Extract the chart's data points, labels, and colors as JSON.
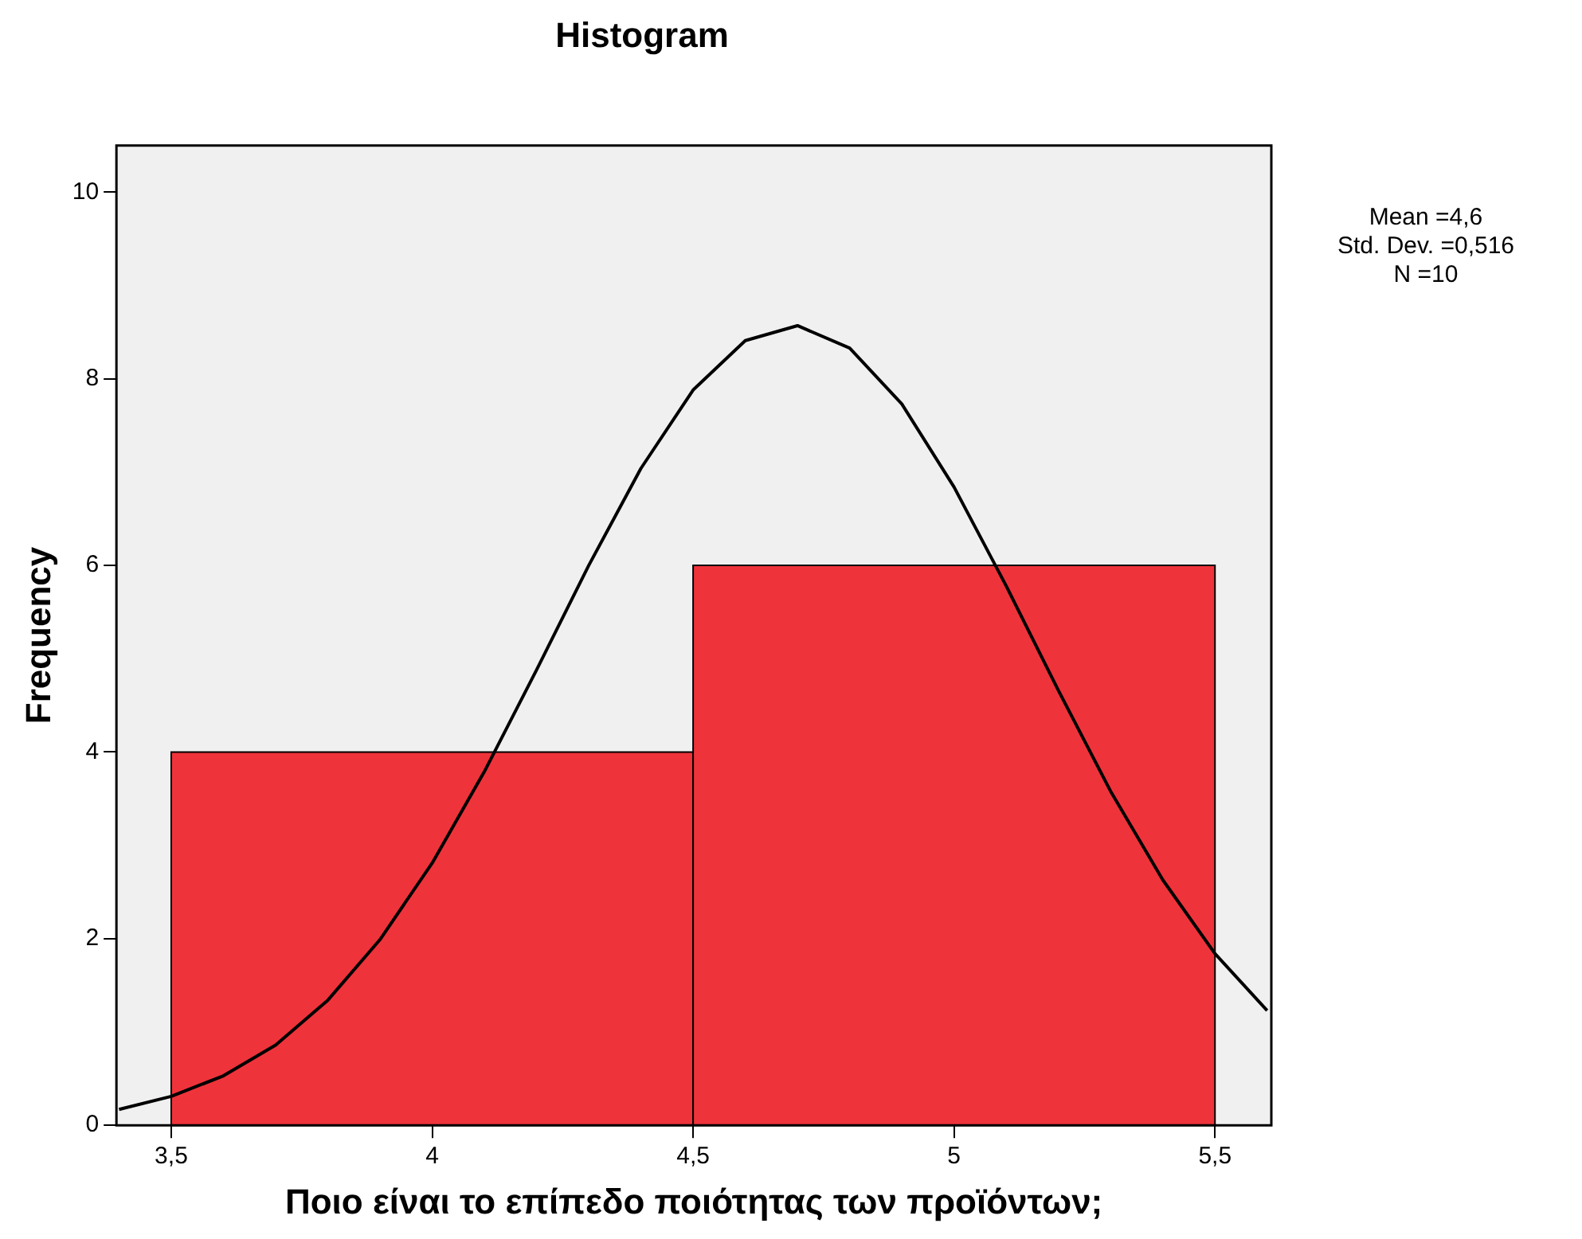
{
  "chart_data": {
    "type": "histogram",
    "title": "Histogram",
    "xlabel": "Ποιο είναι το επίπεδο ποιότητας των προϊόντων;",
    "ylabel": "Frequency",
    "bins": [
      3.5,
      4.5,
      5.5
    ],
    "values": [
      4,
      6
    ],
    "color": "#ef333b",
    "series": [
      {
        "type": "line",
        "color": "#000000",
        "x": [
          3.4,
          3.5,
          3.6,
          3.7,
          3.8,
          3.9,
          4.0,
          4.1,
          4.2,
          4.3,
          4.4,
          4.5,
          4.6,
          4.7,
          4.8,
          4.9,
          5.0,
          5.1,
          5.2,
          5.3,
          5.4,
          5.5,
          5.6
        ],
        "values": [
          0.17,
          0.31,
          0.53,
          0.86,
          1.34,
          1.99,
          2.81,
          3.79,
          4.88,
          6.0,
          7.04,
          7.88,
          8.41,
          8.57,
          8.33,
          7.73,
          6.84,
          5.78,
          4.66,
          3.58,
          2.63,
          1.84,
          1.23
        ]
      }
    ],
    "xlim": [
      3.395,
      5.608
    ],
    "xticks": [
      {
        "value": 3.5,
        "label": "3,5"
      },
      4,
      {
        "value": 4.5,
        "label": "4,5"
      },
      5,
      {
        "value": 5.5,
        "label": "5,5"
      }
    ],
    "ylim": [
      0,
      10.5
    ],
    "yticks": [
      0,
      2,
      4,
      6,
      8,
      10
    ],
    "annotations": [
      "Mean =4,6",
      "Std. Dev. =0,516",
      "N =10"
    ],
    "grid": false,
    "legend": false,
    "marker": "none",
    "line_style": "solid"
  }
}
